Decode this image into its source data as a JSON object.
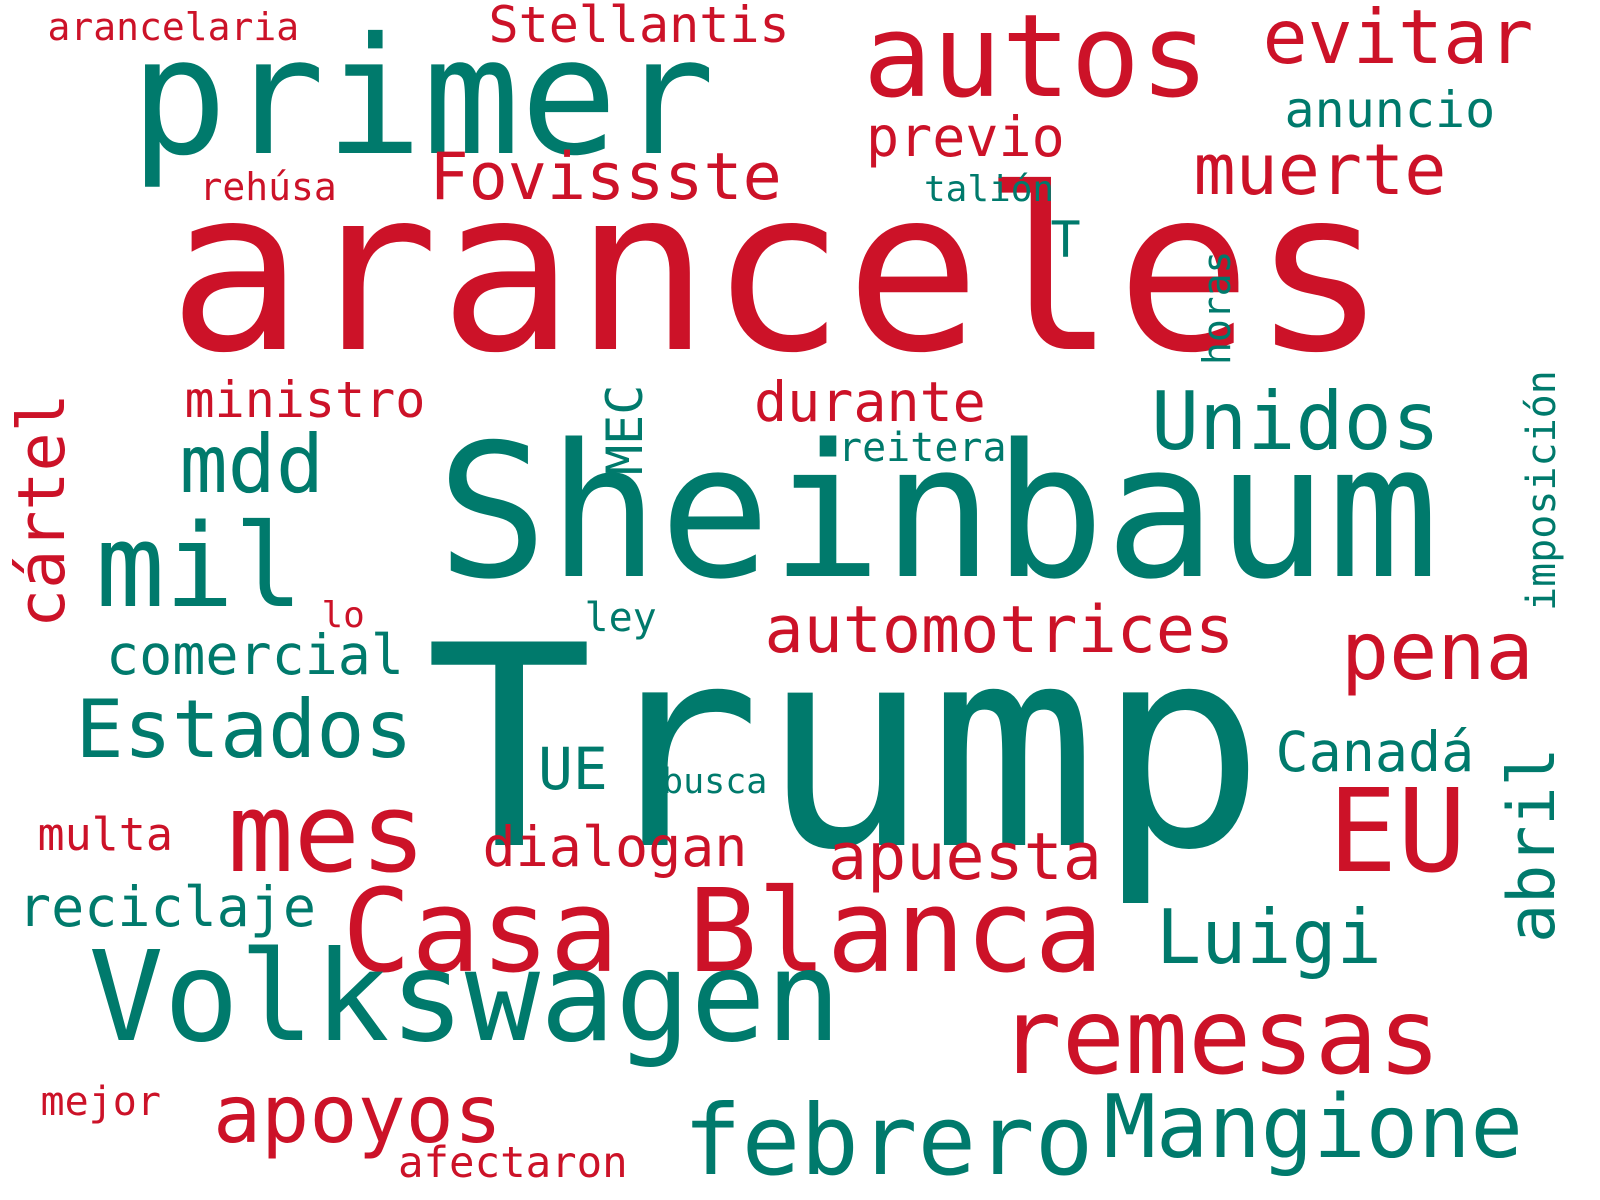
{
  "colors": {
    "red": "#cc1228",
    "teal": "#007a6c",
    "background": "#ffffff"
  },
  "words": [
    {
      "text": "aranceles",
      "color": "red"
    },
    {
      "text": "Trump",
      "color": "teal"
    },
    {
      "text": "Sheinbaum",
      "color": "teal"
    },
    {
      "text": "primer",
      "color": "teal"
    },
    {
      "text": "autos",
      "color": "red"
    },
    {
      "text": "evitar",
      "color": "red"
    },
    {
      "text": "Stellantis",
      "color": "red"
    },
    {
      "text": "arancelaria",
      "color": "red"
    },
    {
      "text": "anuncio",
      "color": "teal"
    },
    {
      "text": "previo",
      "color": "red"
    },
    {
      "text": "Fovissste",
      "color": "red"
    },
    {
      "text": "muerte",
      "color": "red"
    },
    {
      "text": "rehúsa",
      "color": "red"
    },
    {
      "text": "talión",
      "color": "teal"
    },
    {
      "text": "T",
      "color": "teal"
    },
    {
      "text": "horas",
      "color": "teal"
    },
    {
      "text": "ministro",
      "color": "red"
    },
    {
      "text": "durante",
      "color": "red"
    },
    {
      "text": "Unidos",
      "color": "teal"
    },
    {
      "text": "MEC",
      "color": "teal"
    },
    {
      "text": "reitera",
      "color": "teal"
    },
    {
      "text": "imposición",
      "color": "teal"
    },
    {
      "text": "mdd",
      "color": "teal"
    },
    {
      "text": "mil",
      "color": "teal"
    },
    {
      "text": "cártel",
      "color": "red"
    },
    {
      "text": "lo",
      "color": "red"
    },
    {
      "text": "ley",
      "color": "teal"
    },
    {
      "text": "automotrices",
      "color": "red"
    },
    {
      "text": "pena",
      "color": "red"
    },
    {
      "text": "comercial",
      "color": "teal"
    },
    {
      "text": "Estados",
      "color": "teal"
    },
    {
      "text": "UE",
      "color": "teal"
    },
    {
      "text": "busca",
      "color": "teal"
    },
    {
      "text": "Canadá",
      "color": "teal"
    },
    {
      "text": "abril",
      "color": "teal"
    },
    {
      "text": "EU",
      "color": "red"
    },
    {
      "text": "mes",
      "color": "red"
    },
    {
      "text": "multa",
      "color": "red"
    },
    {
      "text": "dialogan",
      "color": "red"
    },
    {
      "text": "apuesta",
      "color": "red"
    },
    {
      "text": "reciclaje",
      "color": "teal"
    },
    {
      "text": "Casa Blanca",
      "color": "red"
    },
    {
      "text": "Luigi",
      "color": "teal"
    },
    {
      "text": "Volkswagen",
      "color": "teal"
    },
    {
      "text": "remesas",
      "color": "red"
    },
    {
      "text": "apoyos",
      "color": "red"
    },
    {
      "text": "mejor",
      "color": "red"
    },
    {
      "text": "febrero",
      "color": "teal"
    },
    {
      "text": "Mangione",
      "color": "teal"
    },
    {
      "text": "afectaron",
      "color": "red"
    }
  ]
}
